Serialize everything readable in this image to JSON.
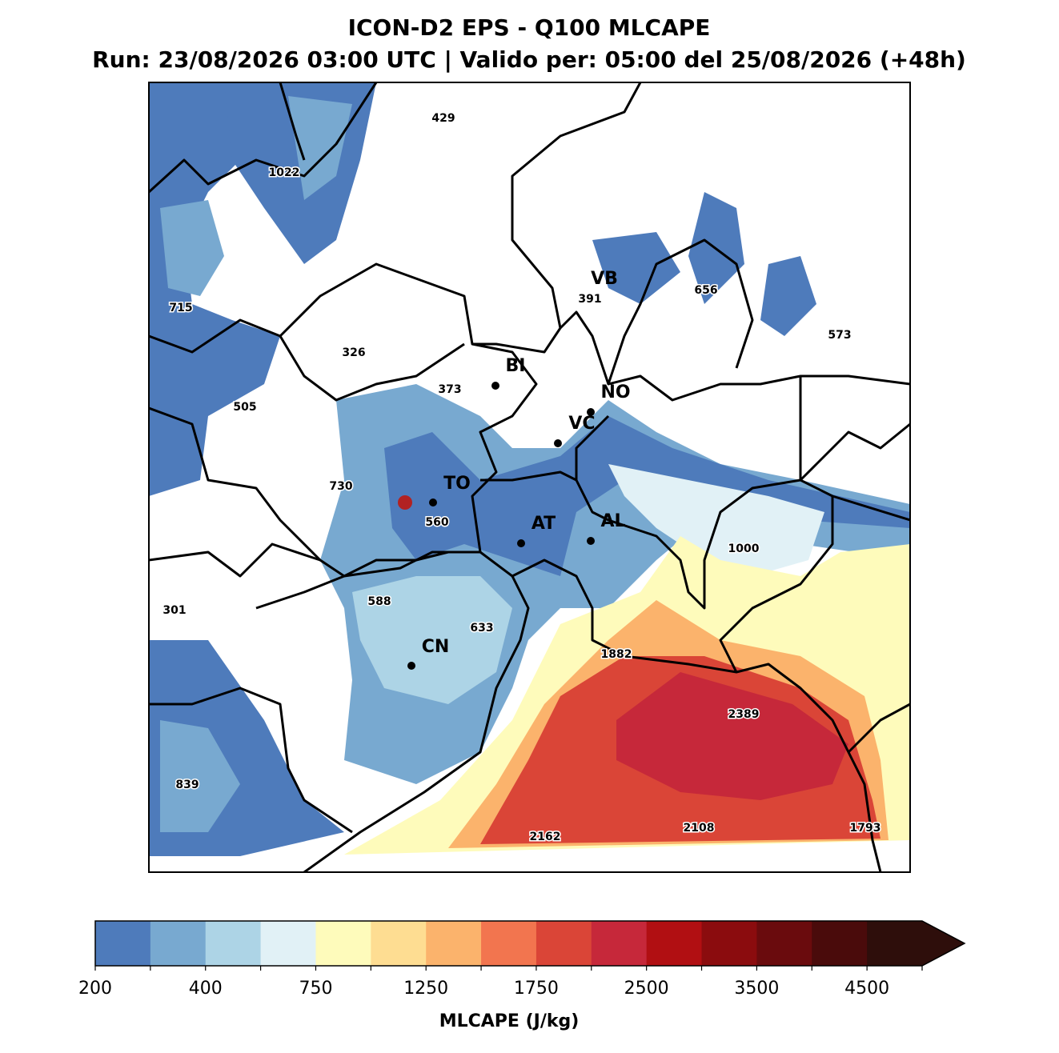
{
  "title": "ICON-D2 EPS - Q100 MLCAPE",
  "subtitle": "Run: 23/08/2026 03:00 UTC | Valido per: 05:00 del 25/08/2026 (+48h)",
  "cities": [
    "VB",
    "BI",
    "NO",
    "VC",
    "TO",
    "AT",
    "AL",
    "CN"
  ],
  "point_values": [
    429,
    1022,
    715,
    326,
    373,
    505,
    730,
    560,
    391,
    656,
    573,
    1000,
    588,
    633,
    301,
    1882,
    2389,
    839,
    2162,
    2108,
    1793
  ],
  "colorbar": {
    "label": "MLCAPE (J/kg)",
    "levels": [
      200,
      300,
      400,
      500,
      750,
      1000,
      1250,
      1500,
      1750,
      2000,
      2500,
      3000,
      3500,
      4000,
      4500,
      5000
    ],
    "colors": [
      "#4e7bbb",
      "#78a9d0",
      "#add4e6",
      "#e1f1f6",
      "#fefbbb",
      "#fedd92",
      "#fbb36c",
      "#f2754f",
      "#da4537",
      "#c6283a",
      "#b10f12",
      "#8b0c0e",
      "#6a0b0d",
      "#4a0b0b",
      "#2e0e0b"
    ],
    "ticks": [
      200,
      400,
      750,
      1250,
      1750,
      2500,
      3500,
      4500
    ]
  }
}
